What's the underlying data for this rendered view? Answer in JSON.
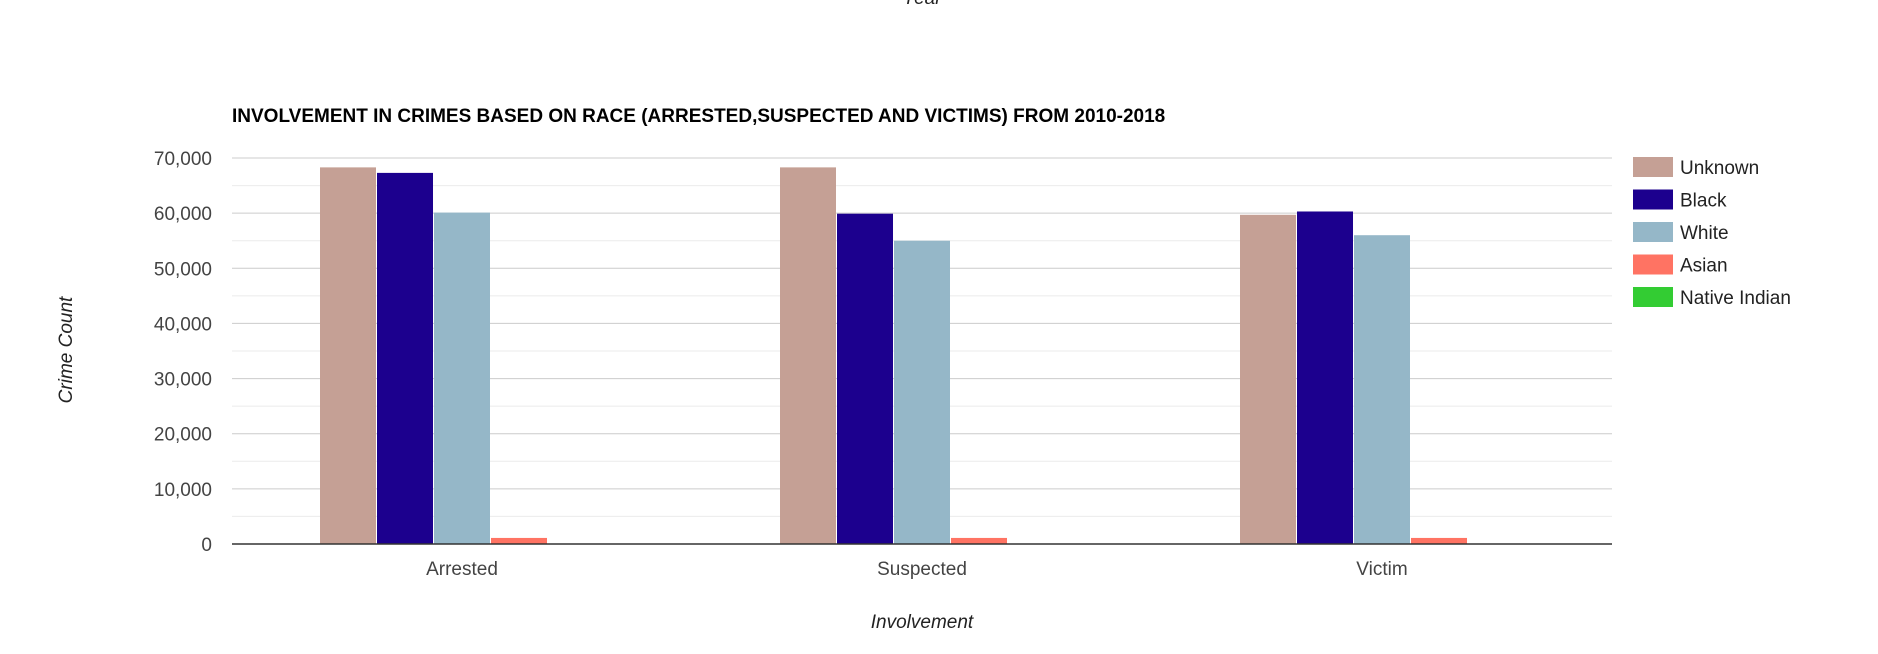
{
  "chart_data": {
    "type": "bar",
    "title": "INVOLVEMENT IN CRIMES BASED ON RACE (ARRESTED,SUSPECTED AND VICTIMS) FROM 2010-2018",
    "top_cut_label": "Year",
    "xlabel": "Involvement",
    "ylabel": "Crime Count",
    "categories": [
      "Arrested",
      "Suspected",
      "Victim"
    ],
    "series": [
      {
        "name": "Unknown",
        "color": "#c5a095",
        "values": [
          68300,
          68300,
          59700
        ]
      },
      {
        "name": "Black",
        "color": "#1c008e",
        "values": [
          67300,
          59900,
          60300
        ]
      },
      {
        "name": "White",
        "color": "#95b7c8",
        "values": [
          60100,
          55000,
          56000
        ]
      },
      {
        "name": "Asian",
        "color": "#ff7363",
        "values": [
          1100,
          1100,
          1100
        ]
      },
      {
        "name": "Native Indian",
        "color": "#33cc33",
        "values": [
          0,
          0,
          0
        ]
      }
    ],
    "ylim": [
      0,
      70000
    ],
    "yticks": [
      0,
      10000,
      20000,
      30000,
      40000,
      50000,
      60000,
      70000
    ],
    "ytick_labels": [
      "0",
      "10,000",
      "20,000",
      "30,000",
      "40,000",
      "50,000",
      "60,000",
      "70,000"
    ],
    "grid": true,
    "legend_position": "right"
  }
}
